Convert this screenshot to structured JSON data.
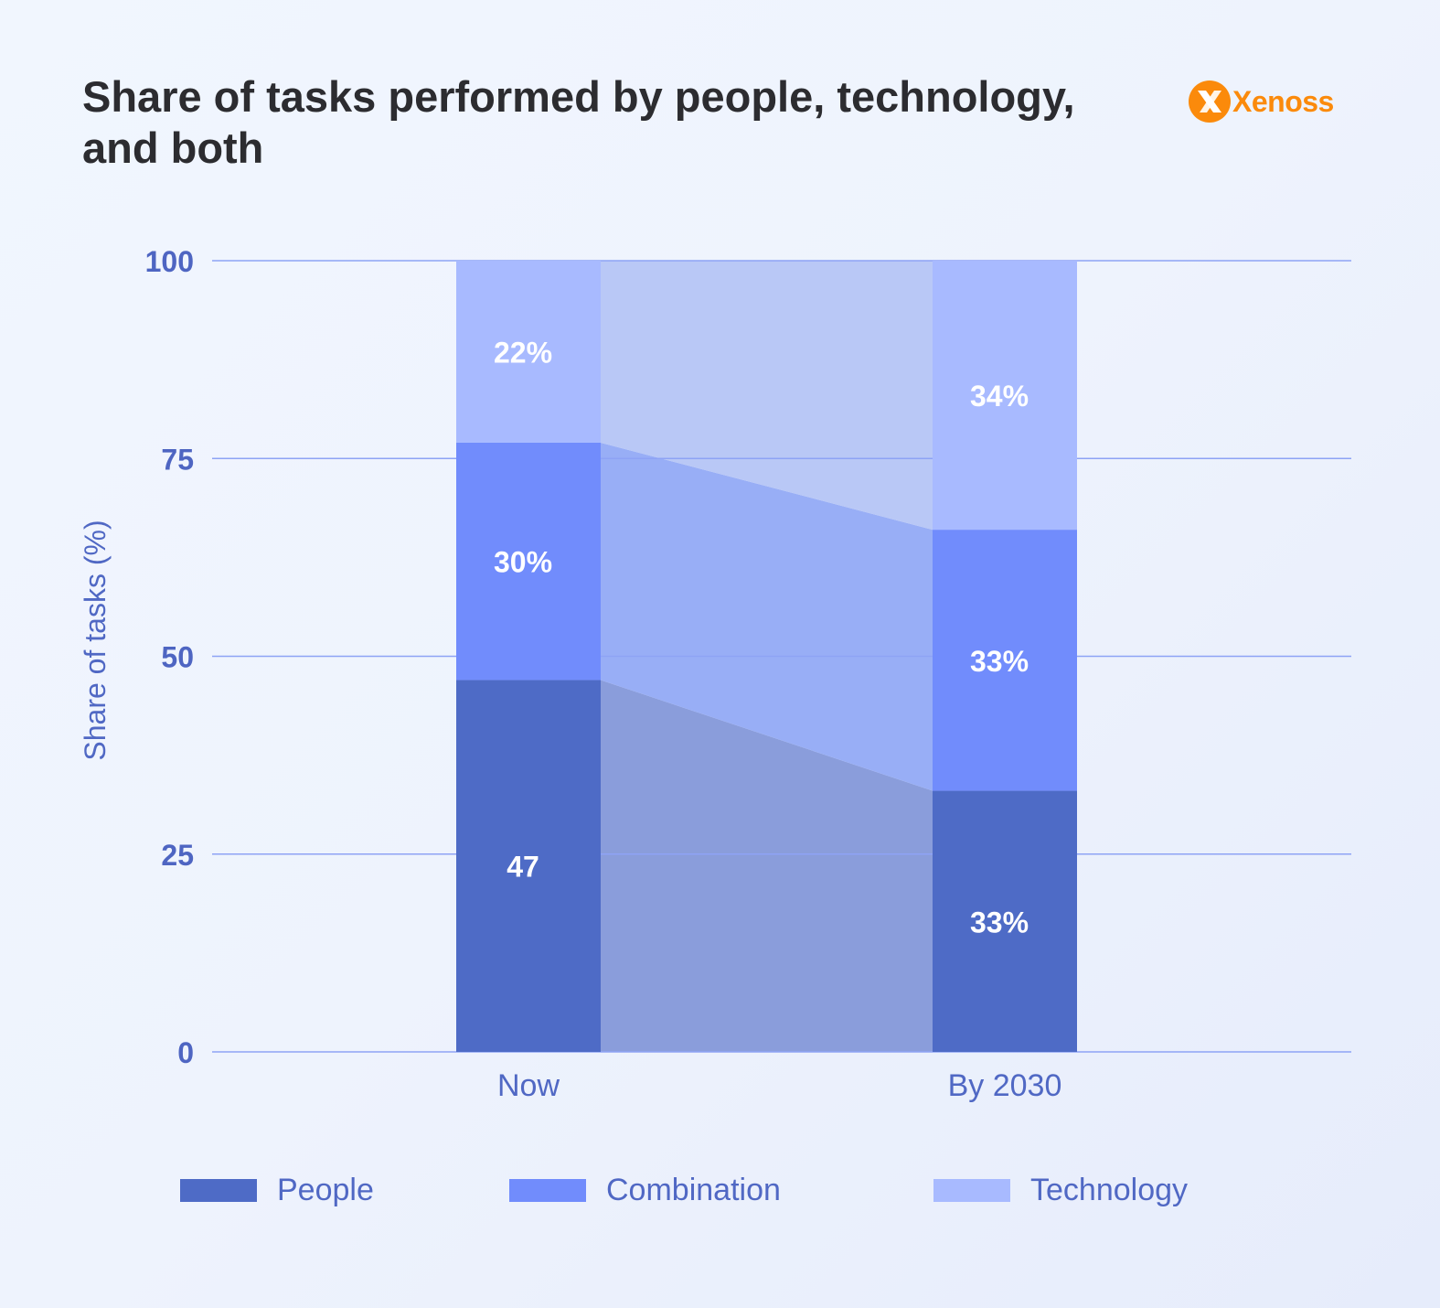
{
  "title": "Share of tasks performed by people, technology, and both",
  "logo": {
    "text": "Xenoss",
    "color": "#fb8a0b"
  },
  "chart_data": {
    "type": "bar",
    "stacked": true,
    "categories": [
      "Now",
      "By 2030"
    ],
    "series": [
      {
        "name": "People",
        "values": [
          47,
          33
        ],
        "labels": [
          "47",
          "33%"
        ],
        "color": "#4e6bc6",
        "flow_color": "#8a9ddb"
      },
      {
        "name": "Combination",
        "values": [
          30,
          33
        ],
        "labels": [
          "30%",
          "33%"
        ],
        "color": "#718cfc",
        "flow_color": "#98aef6"
      },
      {
        "name": "Technology",
        "values": [
          22,
          34
        ],
        "labels": [
          "22%",
          "34%"
        ],
        "color": "#a8baff",
        "flow_color": "#b9c8f6"
      }
    ],
    "ylabel": "Share of tasks (%)",
    "xlabel": "",
    "ylim": [
      0,
      100
    ],
    "yticks": [
      "0",
      "25",
      "50",
      "75",
      "100"
    ],
    "grid": true,
    "legend_position": "bottom"
  }
}
